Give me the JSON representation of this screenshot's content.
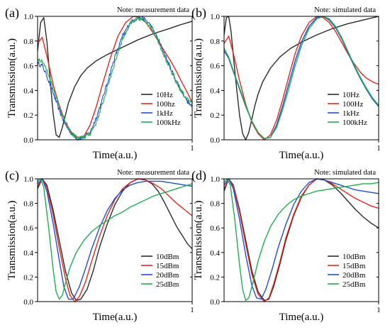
{
  "chart_data": [
    {
      "type": "line",
      "panel_label": "(a)",
      "note": "Note: measurement data",
      "xlabel": "Time(a.u.)",
      "ylabel": "Transmission(a.u.)",
      "xlim": [
        0,
        1
      ],
      "ylim": [
        0,
        1.0
      ],
      "x_ticks": [
        "1"
      ],
      "y_ticks": [
        "0.0",
        "0.2",
        "0.4",
        "0.6",
        "0.8",
        "1.0"
      ],
      "legend_position": "bottom-right",
      "series": [
        {
          "name": "10Hz",
          "color": "#2b2b2b",
          "noisy": false,
          "x": [
            0,
            0.02,
            0.04,
            0.06,
            0.08,
            0.1,
            0.12,
            0.14,
            0.16,
            0.18,
            0.2,
            0.24,
            0.28,
            0.32,
            0.38,
            0.45,
            0.55,
            0.65,
            0.75,
            0.85,
            0.92,
            1.0
          ],
          "y": [
            0.72,
            0.95,
            0.99,
            0.8,
            0.5,
            0.22,
            0.04,
            0.02,
            0.1,
            0.2,
            0.3,
            0.43,
            0.52,
            0.58,
            0.64,
            0.69,
            0.75,
            0.81,
            0.86,
            0.9,
            0.93,
            0.96
          ]
        },
        {
          "name": "100hz",
          "color": "#e8271e",
          "noisy": false,
          "x": [
            0,
            0.03,
            0.06,
            0.1,
            0.14,
            0.18,
            0.22,
            0.26,
            0.3,
            0.34,
            0.38,
            0.42,
            0.47,
            0.52,
            0.57,
            0.62,
            0.66,
            0.7,
            0.74,
            0.78,
            0.82,
            0.86,
            0.9,
            0.94,
            0.97,
            1.0
          ],
          "y": [
            0.78,
            0.83,
            0.68,
            0.45,
            0.28,
            0.14,
            0.06,
            0.02,
            0.03,
            0.12,
            0.27,
            0.45,
            0.66,
            0.84,
            0.95,
            1.0,
            0.99,
            0.95,
            0.88,
            0.8,
            0.72,
            0.64,
            0.55,
            0.45,
            0.38,
            0.3
          ]
        },
        {
          "name": "1kHz",
          "color": "#1f4fd6",
          "noisy": true,
          "x": [
            0,
            0.03,
            0.06,
            0.1,
            0.14,
            0.18,
            0.22,
            0.26,
            0.3,
            0.34,
            0.38,
            0.42,
            0.46,
            0.5,
            0.55,
            0.6,
            0.65,
            0.69,
            0.73,
            0.77,
            0.81,
            0.85,
            0.89,
            0.93,
            0.97,
            1.0
          ],
          "y": [
            0.62,
            0.6,
            0.52,
            0.38,
            0.24,
            0.12,
            0.05,
            0.01,
            0.02,
            0.06,
            0.18,
            0.33,
            0.5,
            0.67,
            0.84,
            0.95,
            0.99,
            0.98,
            0.93,
            0.84,
            0.73,
            0.61,
            0.5,
            0.4,
            0.31,
            0.26
          ]
        },
        {
          "name": "100kHz",
          "color": "#1db04e",
          "noisy": true,
          "x": [
            0,
            0.03,
            0.06,
            0.1,
            0.14,
            0.18,
            0.22,
            0.26,
            0.3,
            0.34,
            0.38,
            0.42,
            0.46,
            0.5,
            0.55,
            0.6,
            0.65,
            0.69,
            0.73,
            0.77,
            0.81,
            0.85,
            0.89,
            0.93,
            0.97,
            1.0
          ],
          "y": [
            0.66,
            0.64,
            0.56,
            0.42,
            0.27,
            0.14,
            0.05,
            0.01,
            0.02,
            0.05,
            0.14,
            0.29,
            0.46,
            0.63,
            0.82,
            0.94,
            0.98,
            0.97,
            0.92,
            0.83,
            0.71,
            0.59,
            0.48,
            0.39,
            0.33,
            0.3
          ]
        }
      ]
    },
    {
      "type": "line",
      "panel_label": "(b)",
      "note": "Note: simulated data",
      "xlabel": "Time(a.u.)",
      "ylabel": "Transmission(a.u.)",
      "xlim": [
        0,
        1
      ],
      "ylim": [
        0,
        1.0
      ],
      "x_ticks": [
        "1"
      ],
      "y_ticks": [
        "0.0",
        "0.2",
        "0.4",
        "0.6",
        "0.8",
        "1.0"
      ],
      "legend_position": "bottom-right",
      "series": [
        {
          "name": "10Hz",
          "color": "#2b2b2b",
          "noisy": false,
          "x": [
            0,
            0.015,
            0.03,
            0.045,
            0.06,
            0.08,
            0.1,
            0.12,
            0.14,
            0.16,
            0.18,
            0.2,
            0.22,
            0.25,
            0.3,
            0.36,
            0.43,
            0.5,
            0.6,
            0.7,
            0.8,
            0.9,
            1.0
          ],
          "y": [
            0.85,
            0.99,
            1.0,
            0.88,
            0.68,
            0.43,
            0.2,
            0.05,
            0.0,
            0.06,
            0.17,
            0.28,
            0.37,
            0.47,
            0.58,
            0.67,
            0.74,
            0.79,
            0.85,
            0.9,
            0.94,
            0.97,
            1.0
          ]
        },
        {
          "name": "100Hz",
          "color": "#e8271e",
          "noisy": false,
          "x": [
            0,
            0.03,
            0.06,
            0.1,
            0.14,
            0.18,
            0.22,
            0.26,
            0.3,
            0.34,
            0.38,
            0.42,
            0.46,
            0.5,
            0.55,
            0.6,
            0.64,
            0.68,
            0.72,
            0.76,
            0.8,
            0.84,
            0.88,
            0.92,
            0.96,
            1.0
          ],
          "y": [
            0.78,
            0.84,
            0.7,
            0.48,
            0.29,
            0.14,
            0.05,
            0.0,
            0.04,
            0.16,
            0.33,
            0.52,
            0.7,
            0.84,
            0.95,
            1.0,
            0.99,
            0.95,
            0.88,
            0.79,
            0.7,
            0.62,
            0.55,
            0.5,
            0.47,
            0.45
          ]
        },
        {
          "name": "1kHz",
          "color": "#1f4fd6",
          "noisy": false,
          "x": [
            0,
            0.03,
            0.06,
            0.1,
            0.14,
            0.18,
            0.22,
            0.26,
            0.3,
            0.34,
            0.38,
            0.42,
            0.46,
            0.5,
            0.55,
            0.6,
            0.64,
            0.68,
            0.72,
            0.76,
            0.8,
            0.84,
            0.88,
            0.92,
            0.96,
            1.0
          ],
          "y": [
            0.72,
            0.66,
            0.55,
            0.41,
            0.27,
            0.15,
            0.06,
            0.01,
            0.02,
            0.12,
            0.28,
            0.46,
            0.64,
            0.79,
            0.92,
            0.99,
            1.0,
            0.97,
            0.91,
            0.82,
            0.71,
            0.6,
            0.5,
            0.41,
            0.33,
            0.27
          ]
        },
        {
          "name": "100kHz",
          "color": "#1db04e",
          "noisy": false,
          "x": [
            0,
            0.03,
            0.06,
            0.1,
            0.14,
            0.18,
            0.22,
            0.26,
            0.3,
            0.34,
            0.38,
            0.42,
            0.46,
            0.5,
            0.55,
            0.6,
            0.64,
            0.68,
            0.72,
            0.76,
            0.8,
            0.84,
            0.88,
            0.92,
            0.96,
            1.0
          ],
          "y": [
            0.74,
            0.67,
            0.56,
            0.42,
            0.28,
            0.15,
            0.06,
            0.01,
            0.02,
            0.1,
            0.25,
            0.42,
            0.6,
            0.76,
            0.9,
            0.98,
            1.0,
            0.98,
            0.92,
            0.83,
            0.72,
            0.61,
            0.51,
            0.42,
            0.34,
            0.28
          ]
        }
      ]
    },
    {
      "type": "line",
      "panel_label": "(c)",
      "note": "Note: measurement data",
      "xlabel": "Time(a.u.)",
      "ylabel": "Transmission(a.u.)",
      "xlim": [
        0,
        1
      ],
      "ylim": [
        0,
        1.0
      ],
      "x_ticks": [
        "1"
      ],
      "y_ticks": [
        "0.0",
        "0.2",
        "0.4",
        "0.6",
        "0.8",
        "1.0"
      ],
      "legend_position": "bottom-right",
      "series": [
        {
          "name": "10dBm",
          "color": "#2b2b2b",
          "noisy": false,
          "x": [
            0,
            0.03,
            0.06,
            0.1,
            0.14,
            0.18,
            0.22,
            0.25,
            0.28,
            0.32,
            0.36,
            0.4,
            0.45,
            0.5,
            0.55,
            0.6,
            0.65,
            0.7,
            0.74,
            0.78,
            0.82,
            0.86,
            0.9,
            0.94,
            0.97,
            1.0
          ],
          "y": [
            0.92,
            1.0,
            0.95,
            0.75,
            0.5,
            0.25,
            0.07,
            0.01,
            0.02,
            0.1,
            0.25,
            0.44,
            0.63,
            0.79,
            0.9,
            0.97,
            1.0,
            0.99,
            0.96,
            0.9,
            0.81,
            0.71,
            0.61,
            0.53,
            0.47,
            0.43
          ]
        },
        {
          "name": "15dBm",
          "color": "#e8271e",
          "noisy": false,
          "x": [
            0,
            0.03,
            0.06,
            0.1,
            0.14,
            0.18,
            0.21,
            0.24,
            0.27,
            0.31,
            0.35,
            0.4,
            0.45,
            0.5,
            0.55,
            0.6,
            0.65,
            0.7,
            0.75,
            0.8,
            0.85,
            0.9,
            0.95,
            1.0
          ],
          "y": [
            0.94,
            1.0,
            0.93,
            0.71,
            0.44,
            0.19,
            0.05,
            0.0,
            0.04,
            0.16,
            0.33,
            0.53,
            0.7,
            0.83,
            0.92,
            0.97,
            1.0,
            0.99,
            0.96,
            0.92,
            0.86,
            0.8,
            0.75,
            0.7
          ]
        },
        {
          "name": "20dBm",
          "color": "#1f4fd6",
          "noisy": false,
          "x": [
            0,
            0.03,
            0.06,
            0.1,
            0.14,
            0.17,
            0.2,
            0.23,
            0.27,
            0.31,
            0.35,
            0.4,
            0.45,
            0.5,
            0.55,
            0.6,
            0.65,
            0.7,
            0.75,
            0.8,
            0.85,
            0.9,
            0.95,
            1.0
          ],
          "y": [
            0.96,
            1.0,
            0.9,
            0.64,
            0.34,
            0.12,
            0.02,
            0.02,
            0.12,
            0.27,
            0.43,
            0.6,
            0.74,
            0.84,
            0.91,
            0.95,
            0.97,
            0.98,
            0.98,
            0.98,
            0.97,
            0.96,
            0.95,
            0.94
          ]
        },
        {
          "name": "25dBm",
          "color": "#1db04e",
          "noisy": false,
          "x": [
            0,
            0.02,
            0.04,
            0.07,
            0.1,
            0.12,
            0.14,
            0.16,
            0.18,
            0.21,
            0.25,
            0.3,
            0.35,
            0.4,
            0.45,
            0.5,
            0.55,
            0.6,
            0.65,
            0.7,
            0.75,
            0.8,
            0.85,
            0.9,
            0.95,
            1.0
          ],
          "y": [
            0.98,
            1.0,
            0.93,
            0.62,
            0.27,
            0.08,
            0.02,
            0.05,
            0.15,
            0.28,
            0.4,
            0.5,
            0.57,
            0.62,
            0.66,
            0.7,
            0.73,
            0.77,
            0.8,
            0.83,
            0.86,
            0.88,
            0.9,
            0.92,
            0.94,
            0.96
          ]
        }
      ]
    },
    {
      "type": "line",
      "panel_label": "(d)",
      "note": "Note: simulated data",
      "xlabel": "Time(a.u.)",
      "ylabel": "Transmission(a.u.)",
      "xlim": [
        0,
        1
      ],
      "ylim": [
        0,
        1.0
      ],
      "x_ticks": [
        "1"
      ],
      "y_ticks": [
        "0.0",
        "0.2",
        "0.4",
        "0.6",
        "0.8",
        "1.0"
      ],
      "legend_position": "bottom-right",
      "series": [
        {
          "name": "10dBm",
          "color": "#2b2b2b",
          "noisy": false,
          "x": [
            0,
            0.03,
            0.06,
            0.1,
            0.14,
            0.18,
            0.22,
            0.26,
            0.29,
            0.32,
            0.36,
            0.4,
            0.45,
            0.5,
            0.55,
            0.6,
            0.65,
            0.7,
            0.75,
            0.8,
            0.85,
            0.9,
            0.95,
            1.0
          ],
          "y": [
            0.9,
            1.0,
            0.95,
            0.75,
            0.5,
            0.25,
            0.08,
            0.01,
            0.02,
            0.12,
            0.3,
            0.5,
            0.7,
            0.85,
            0.95,
            1.0,
            0.99,
            0.95,
            0.89,
            0.82,
            0.75,
            0.69,
            0.64,
            0.6
          ]
        },
        {
          "name": "15dBm",
          "color": "#e8271e",
          "noisy": false,
          "x": [
            0,
            0.03,
            0.06,
            0.1,
            0.14,
            0.18,
            0.22,
            0.26,
            0.29,
            0.32,
            0.36,
            0.4,
            0.45,
            0.5,
            0.55,
            0.6,
            0.65,
            0.7,
            0.75,
            0.8,
            0.85,
            0.9,
            0.95,
            1.0
          ],
          "y": [
            0.92,
            1.0,
            0.94,
            0.73,
            0.47,
            0.22,
            0.06,
            0.0,
            0.03,
            0.14,
            0.32,
            0.52,
            0.71,
            0.86,
            0.95,
            1.0,
            0.99,
            0.96,
            0.92,
            0.88,
            0.84,
            0.81,
            0.78,
            0.76
          ]
        },
        {
          "name": "20dBm",
          "color": "#1f4fd6",
          "noisy": false,
          "x": [
            0,
            0.03,
            0.06,
            0.1,
            0.14,
            0.18,
            0.21,
            0.24,
            0.27,
            0.31,
            0.35,
            0.4,
            0.45,
            0.5,
            0.55,
            0.6,
            0.65,
            0.7,
            0.75,
            0.8,
            0.85,
            0.9,
            0.95,
            1.0
          ],
          "y": [
            0.95,
            1.0,
            0.92,
            0.67,
            0.38,
            0.13,
            0.03,
            0.02,
            0.1,
            0.26,
            0.44,
            0.63,
            0.79,
            0.9,
            0.97,
            1.0,
            0.99,
            0.97,
            0.95,
            0.93,
            0.91,
            0.9,
            0.89,
            0.88
          ]
        },
        {
          "name": "25dBm",
          "color": "#1db04e",
          "noisy": false,
          "x": [
            0,
            0.02,
            0.04,
            0.07,
            0.1,
            0.12,
            0.14,
            0.16,
            0.19,
            0.22,
            0.26,
            0.3,
            0.35,
            0.4,
            0.45,
            0.5,
            0.55,
            0.6,
            0.65,
            0.7,
            0.75,
            0.8,
            0.85,
            0.9,
            0.95,
            1.0
          ],
          "y": [
            0.97,
            1.0,
            0.95,
            0.66,
            0.3,
            0.1,
            0.01,
            0.03,
            0.17,
            0.33,
            0.49,
            0.61,
            0.71,
            0.78,
            0.83,
            0.86,
            0.88,
            0.9,
            0.91,
            0.92,
            0.93,
            0.94,
            0.95,
            0.96,
            0.96,
            0.97
          ]
        }
      ]
    }
  ]
}
